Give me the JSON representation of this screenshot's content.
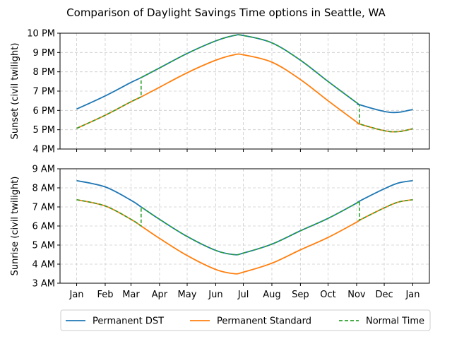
{
  "chart_data": {
    "type": "line",
    "title": "Comparison of Daylight Savings Time options in Seattle, WA",
    "x_tick_labels": [
      "Jan",
      "Feb",
      "Mar",
      "Apr",
      "May",
      "Jun",
      "Jul",
      "Aug",
      "Sep",
      "Oct",
      "Nov",
      "Dec",
      "Jan"
    ],
    "x_ticks_day_of_year": [
      1,
      32,
      60,
      91,
      121,
      152,
      182,
      213,
      244,
      274,
      305,
      335,
      366
    ],
    "xlim": [
      1,
      366
    ],
    "grid": true,
    "legend_position": "bottom",
    "legend": [
      {
        "label": "Permanent DST",
        "color": "#1f77b4",
        "style": "solid"
      },
      {
        "label": "Permanent Standard",
        "color": "#ff7f0e",
        "style": "solid"
      },
      {
        "label": "Normal Time",
        "color": "#2ca02c",
        "style": "dashed"
      }
    ],
    "dst_transitions_day_of_year": {
      "start": 71,
      "end": 308
    },
    "panels": [
      {
        "name": "sunset",
        "ylabel": "Sunset (civil twilight)",
        "ylim_hours": [
          16,
          22
        ],
        "y_tick_labels": [
          "4 PM",
          "5 PM",
          "6 PM",
          "7 PM",
          "8 PM",
          "9 PM",
          "10 PM"
        ],
        "y_ticks_hours": [
          16,
          17,
          18,
          19,
          20,
          21,
          22
        ],
        "standard_series": {
          "x": [
            1,
            32,
            60,
            71,
            91,
            121,
            152,
            172,
            182,
            213,
            244,
            274,
            305,
            308,
            335,
            350,
            366
          ],
          "y": [
            17.07,
            17.75,
            18.45,
            18.7,
            19.2,
            19.95,
            20.6,
            20.88,
            20.88,
            20.5,
            19.6,
            18.5,
            17.4,
            17.3,
            16.95,
            16.9,
            17.05
          ]
        },
        "dst_series": {
          "x": [
            1,
            32,
            60,
            71,
            91,
            121,
            152,
            172,
            182,
            213,
            244,
            274,
            305,
            308,
            335,
            350,
            366
          ],
          "y": [
            18.07,
            18.75,
            19.45,
            19.7,
            20.2,
            20.95,
            21.6,
            21.88,
            21.88,
            21.5,
            20.6,
            19.5,
            18.4,
            18.3,
            17.95,
            17.9,
            18.05
          ]
        }
      },
      {
        "name": "sunrise",
        "ylabel": "Sunrise (civil twilight)",
        "ylim_hours": [
          3,
          9
        ],
        "y_tick_labels": [
          "3 AM",
          "4 AM",
          "5 AM",
          "6 AM",
          "7 AM",
          "8 AM",
          "9 AM"
        ],
        "y_ticks_hours": [
          3,
          4,
          5,
          6,
          7,
          8,
          9
        ],
        "standard_series": {
          "x": [
            1,
            32,
            60,
            71,
            91,
            121,
            152,
            172,
            182,
            213,
            244,
            274,
            305,
            308,
            335,
            350,
            366
          ],
          "y": [
            7.38,
            7.05,
            6.35,
            6.0,
            5.35,
            4.45,
            3.72,
            3.5,
            3.58,
            4.05,
            4.75,
            5.4,
            6.2,
            6.3,
            6.95,
            7.25,
            7.38
          ]
        },
        "dst_series": {
          "x": [
            1,
            32,
            60,
            71,
            91,
            121,
            152,
            172,
            182,
            213,
            244,
            274,
            305,
            308,
            335,
            350,
            366
          ],
          "y": [
            8.38,
            8.05,
            7.35,
            7.0,
            6.35,
            5.45,
            4.72,
            4.5,
            4.58,
            5.05,
            5.75,
            6.4,
            7.2,
            7.3,
            7.95,
            8.25,
            8.38
          ]
        }
      }
    ]
  }
}
